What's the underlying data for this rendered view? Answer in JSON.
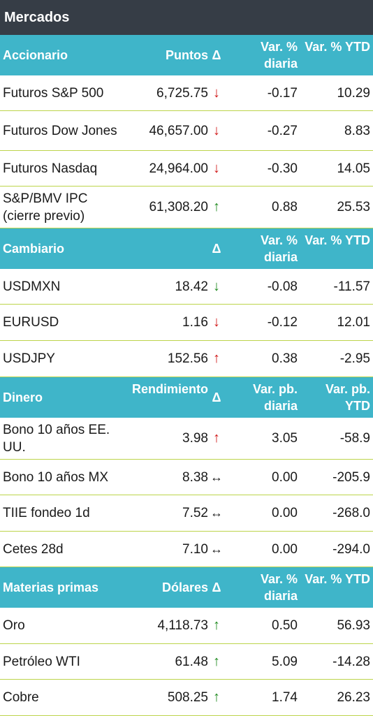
{
  "title": "Mercados",
  "sections": [
    {
      "headers": {
        "name": "Accionario",
        "value": "Puntos",
        "delta": "Δ",
        "daily": "Var. % diaria",
        "ytd": "Var. % YTD"
      },
      "rows": [
        {
          "name": "Futuros S&P 500",
          "value": "6,725.75",
          "arrow": "↓",
          "arrow_class": "down-red",
          "daily": "-0.17",
          "ytd": "10.29"
        },
        {
          "name": "Futuros Dow Jones",
          "value": "46,657.00",
          "arrow": "↓",
          "arrow_class": "down-red",
          "daily": "-0.27",
          "ytd": "8.83"
        },
        {
          "name": "Futuros Nasdaq",
          "value": "24,964.00",
          "arrow": "↓",
          "arrow_class": "down-red",
          "daily": "-0.30",
          "ytd": "14.05"
        },
        {
          "name": "S&P/BMV IPC (cierre previo)",
          "value": "61,308.20",
          "arrow": "↑",
          "arrow_class": "up-green",
          "daily": "0.88",
          "ytd": "25.53"
        }
      ]
    },
    {
      "headers": {
        "name": "Cambiario",
        "value": "",
        "delta": "Δ",
        "daily": "Var. % diaria",
        "ytd": "Var. % YTD"
      },
      "rows": [
        {
          "name": "USDMXN",
          "value": "18.42",
          "arrow": "↓",
          "arrow_class": "down-green",
          "daily": "-0.08",
          "ytd": "-11.57"
        },
        {
          "name": "EURUSD",
          "value": "1.16",
          "arrow": "↓",
          "arrow_class": "down-red",
          "daily": "-0.12",
          "ytd": "12.01"
        },
        {
          "name": "USDJPY",
          "value": "152.56",
          "arrow": "↑",
          "arrow_class": "up-red",
          "daily": "0.38",
          "ytd": "-2.95"
        }
      ]
    },
    {
      "headers": {
        "name": "Dinero",
        "value": "Rendimiento",
        "delta": "Δ",
        "daily": "Var. pb. diaria",
        "ytd": "Var. pb. YTD"
      },
      "rows": [
        {
          "name": "Bono 10 años EE. UU.",
          "value": "3.98",
          "arrow": "↑",
          "arrow_class": "up-red",
          "daily": "3.05",
          "ytd": "-58.9"
        },
        {
          "name": "Bono 10 años MX",
          "value": "8.38",
          "arrow": "↔",
          "arrow_class": "flat",
          "daily": "0.00",
          "ytd": "-205.9"
        },
        {
          "name": "TIIE fondeo 1d",
          "value": "7.52",
          "arrow": "↔",
          "arrow_class": "flat",
          "daily": "0.00",
          "ytd": "-268.0"
        },
        {
          "name": "Cetes 28d",
          "value": "7.10",
          "arrow": "↔",
          "arrow_class": "flat",
          "daily": "0.00",
          "ytd": "-294.0"
        }
      ]
    },
    {
      "headers": {
        "name": "Materias primas",
        "value": "Dólares",
        "delta": "Δ",
        "daily": "Var. % diaria",
        "ytd": "Var. % YTD"
      },
      "rows": [
        {
          "name": "Oro",
          "value": "4,118.73",
          "arrow": "↑",
          "arrow_class": "up-green",
          "daily": "0.50",
          "ytd": "56.93"
        },
        {
          "name": "Petróleo WTI",
          "value": "61.48",
          "arrow": "↑",
          "arrow_class": "up-green",
          "daily": "5.09",
          "ytd": "-14.28"
        },
        {
          "name": "Cobre",
          "value": "508.25",
          "arrow": "↑",
          "arrow_class": "up-green",
          "daily": "1.74",
          "ytd": "26.23"
        }
      ]
    }
  ]
}
